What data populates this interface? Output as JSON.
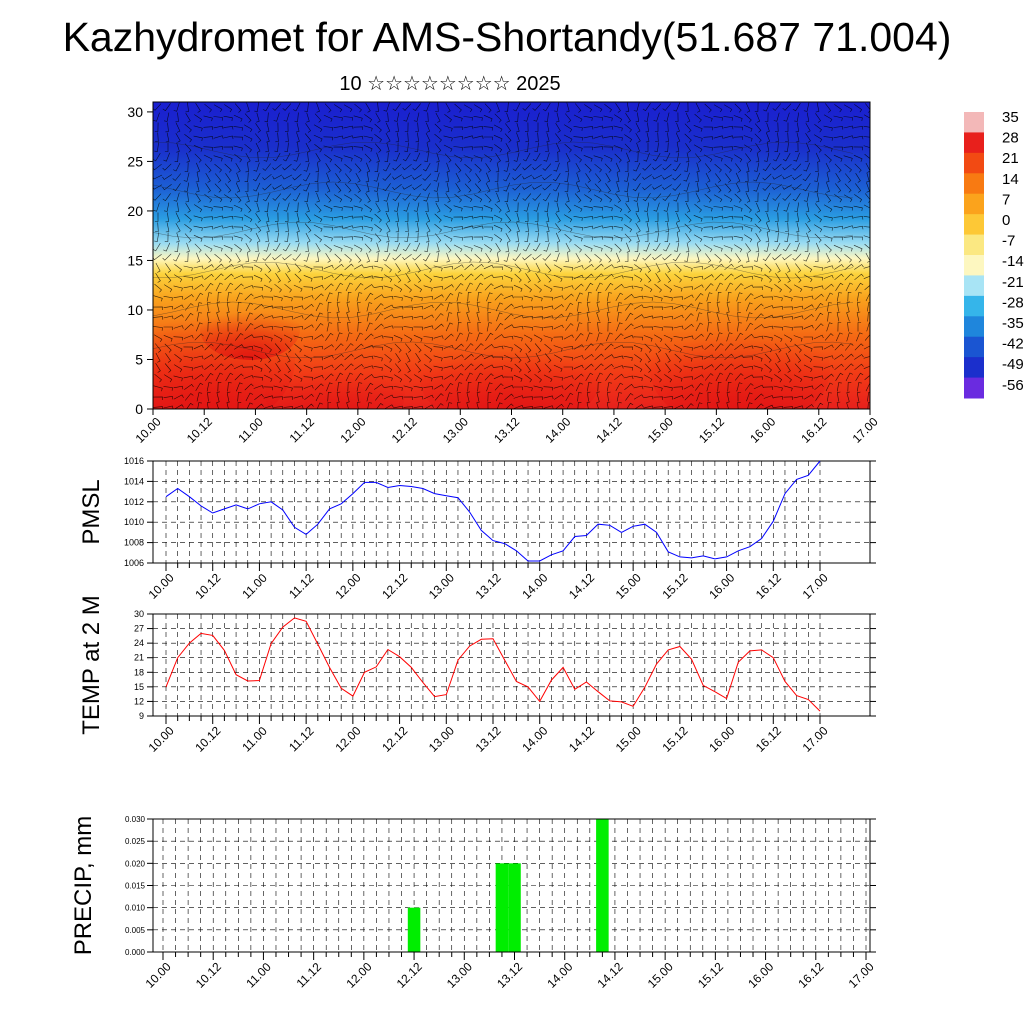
{
  "title": "Kazhydromet for AMS-Shortandy(51.687 71.004)",
  "subtitle": "10 ☆☆☆☆☆☆☆☆ 2025",
  "x_tick_labels": [
    "10.00",
    "10.12",
    "11.00",
    "11.12",
    "12.00",
    "12.12",
    "13.00",
    "13.12",
    "14.00",
    "14.12",
    "15.00",
    "15.12",
    "16.00",
    "16.12",
    "17.00"
  ],
  "chart_data": [
    {
      "type": "heatmap",
      "description": "Vertical cross-section: colored temperature field with wind barbs",
      "x": [
        "10.00",
        "10.12",
        "11.00",
        "11.12",
        "12.00",
        "12.12",
        "13.00",
        "13.12",
        "14.00",
        "14.12",
        "15.00",
        "15.12",
        "16.00",
        "16.12",
        "17.00"
      ],
      "ylim": [
        0,
        31
      ],
      "yticks": [
        0,
        5,
        10,
        15,
        20,
        25,
        30
      ],
      "colorbar": {
        "labels": [
          "35",
          "28",
          "21",
          "14",
          "7",
          "0",
          "-7",
          "-14",
          "-21",
          "-28",
          "-35",
          "-42",
          "-49",
          "-56"
        ],
        "colors": [
          "#f3b8b8",
          "#e8201c",
          "#f24a13",
          "#f87a12",
          "#fba31c",
          "#fdc836",
          "#fbe882",
          "#fdf7c0",
          "#a8e4f5",
          "#35b5ea",
          "#1f86dc",
          "#1a55d2",
          "#1b2fcc",
          "#6a2be0"
        ]
      }
    },
    {
      "type": "line",
      "ylabel": "PMSL",
      "ylim": [
        1006,
        1016
      ],
      "yticks": [
        1006,
        1008,
        1010,
        1012,
        1014,
        1016
      ],
      "x_step_hours": 3,
      "series": [
        {
          "color": "#0000ff",
          "values": [
            1012.5,
            1013.3,
            1012.5,
            1011.6,
            1010.9,
            1011.3,
            1011.7,
            1011.3,
            1011.8,
            1012.0,
            1011.2,
            1009.5,
            1008.8,
            1009.8,
            1011.3,
            1011.8,
            1012.8,
            1013.9,
            1013.9,
            1013.4,
            1013.6,
            1013.5,
            1013.3,
            1012.8,
            1012.6,
            1012.4,
            1011.0,
            1009.2,
            1008.2,
            1007.9,
            1007.2,
            1006.2,
            1006.2,
            1006.8,
            1007.2,
            1008.6,
            1008.7,
            1009.8,
            1009.7,
            1009.0,
            1009.6,
            1009.8,
            1009.0,
            1007.1,
            1006.6,
            1006.5,
            1006.7,
            1006.4,
            1006.6,
            1007.2,
            1007.6,
            1008.4,
            1010.1,
            1012.8,
            1014.2,
            1014.6,
            1016.0
          ]
        }
      ]
    },
    {
      "type": "line",
      "ylabel": "TEMP at 2 M",
      "ylim": [
        9,
        30
      ],
      "yticks": [
        9,
        12,
        15,
        18,
        21,
        24,
        27,
        30
      ],
      "x_step_hours": 3,
      "series": [
        {
          "color": "#ff0000",
          "values": [
            15.0,
            21.0,
            24.0,
            26.0,
            25.6,
            22.5,
            17.5,
            16.2,
            16.3,
            23.9,
            27.3,
            29.2,
            28.5,
            23.8,
            19.0,
            14.7,
            13.1,
            18.0,
            19.1,
            22.7,
            21.2,
            19.0,
            15.9,
            13.0,
            13.4,
            20.5,
            23.4,
            24.8,
            24.9,
            20.5,
            16.1,
            15.0,
            12.0,
            16.4,
            19.0,
            14.5,
            16.0,
            14.0,
            12.1,
            11.9,
            11.0,
            14.9,
            19.7,
            22.6,
            23.3,
            20.7,
            15.3,
            14.0,
            12.6,
            20.1,
            22.4,
            22.6,
            21.0,
            16.1,
            13.2,
            12.4,
            10.0
          ]
        }
      ]
    },
    {
      "type": "bar",
      "ylabel": "PRECIP, mm",
      "ylim": [
        0,
        0.03
      ],
      "yticks": [
        "0.000",
        "0.005",
        "0.010",
        "0.015",
        "0.020",
        "0.025",
        "0.030"
      ],
      "bar_color": "#00ee00",
      "bars": [
        {
          "x": "12.12",
          "value": 0.01
        },
        {
          "x": "13.09",
          "value": 0.02
        },
        {
          "x": "13.12",
          "value": 0.02
        },
        {
          "x": "14.09",
          "value": 0.03
        }
      ]
    }
  ]
}
